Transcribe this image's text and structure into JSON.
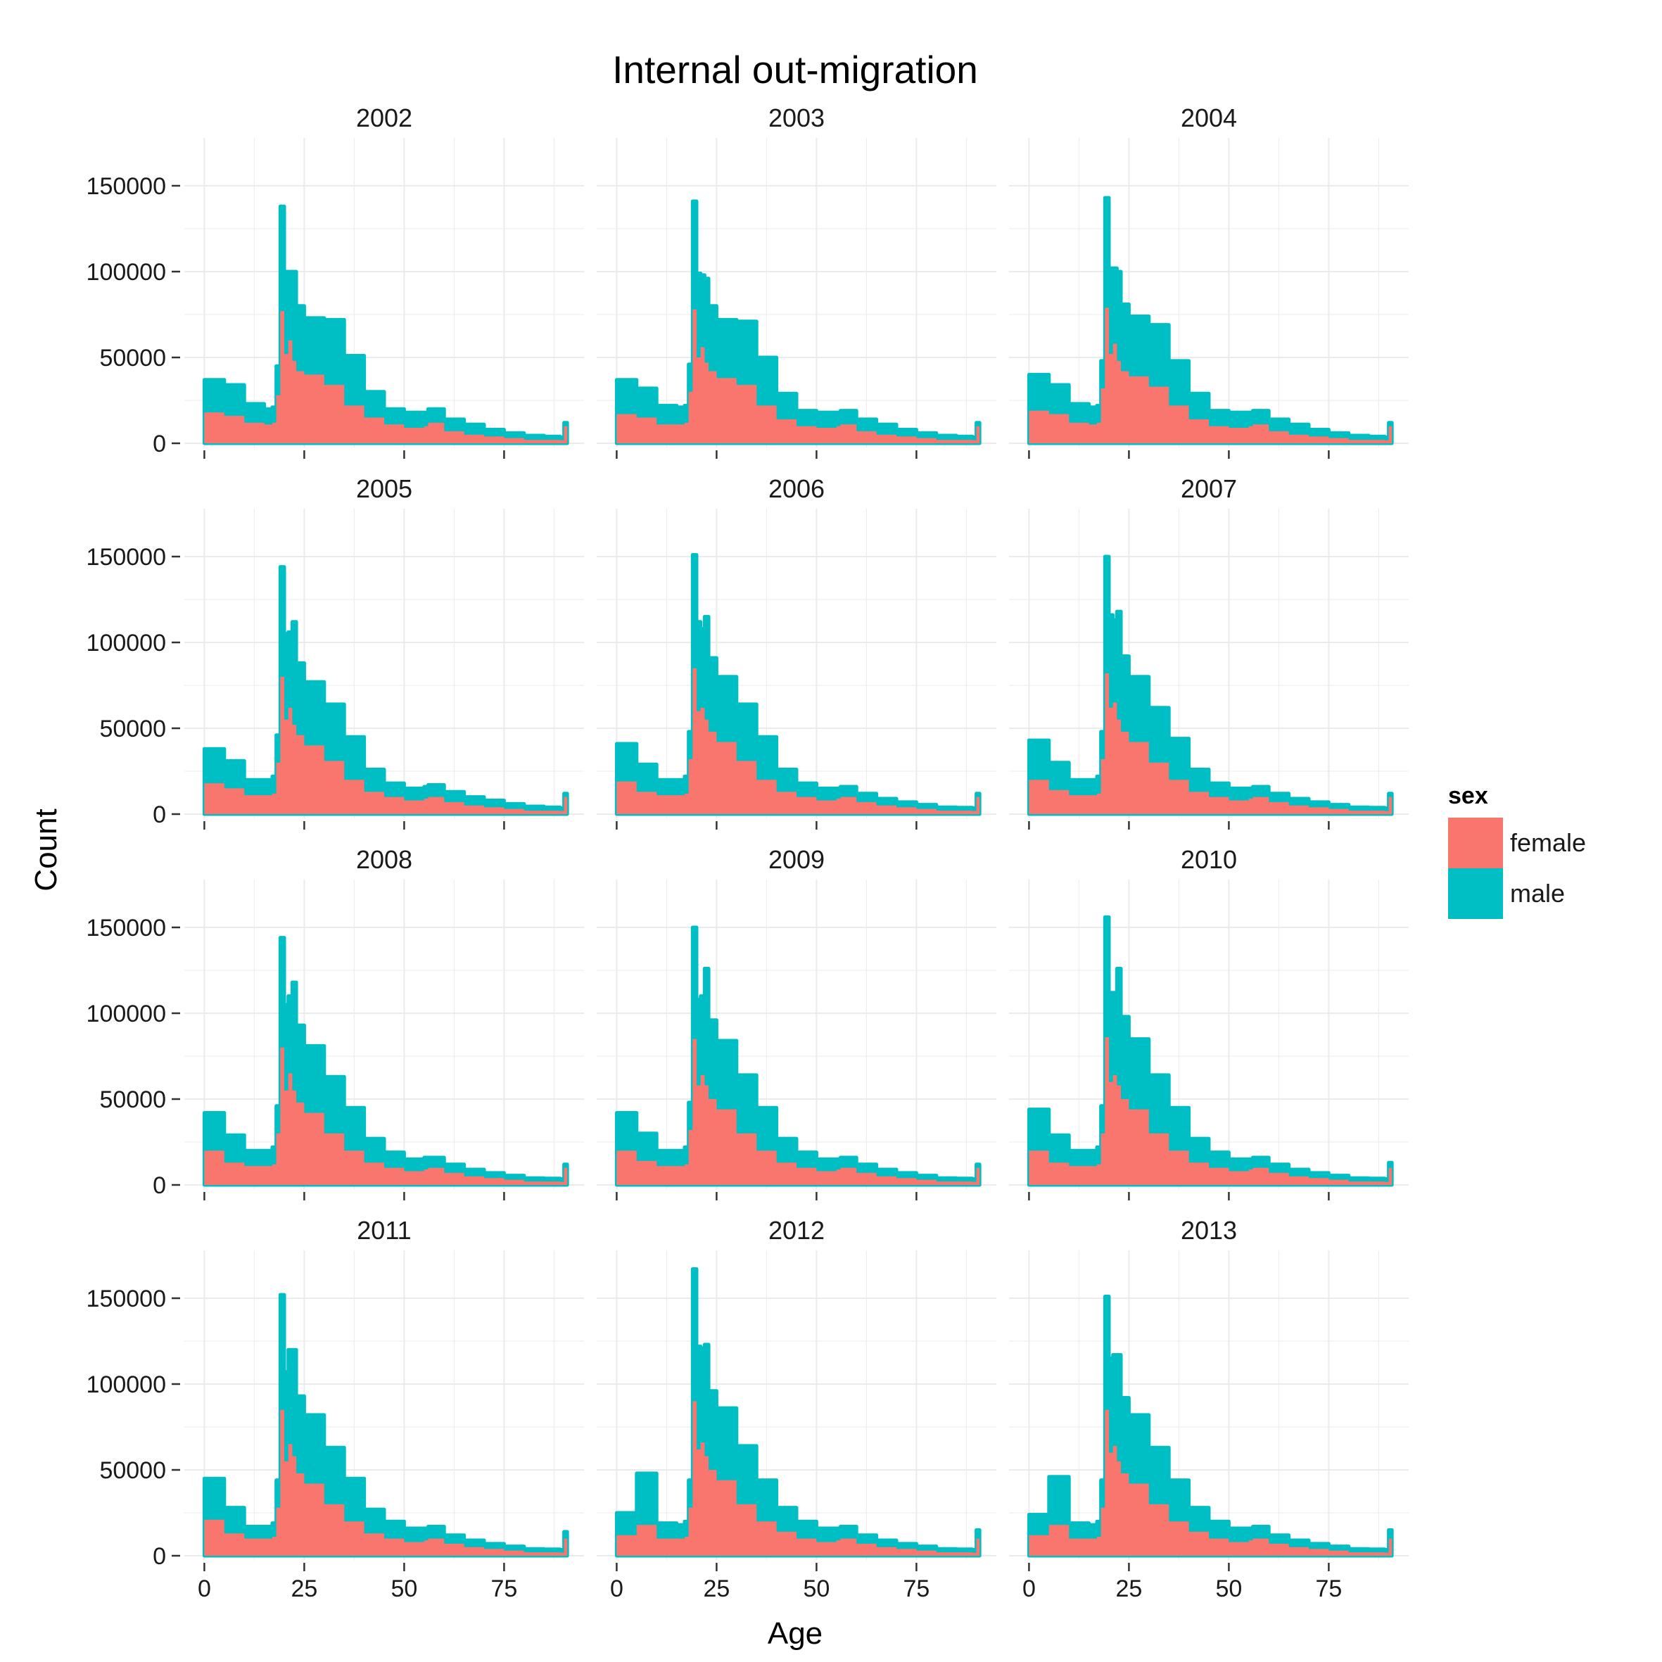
{
  "chart_data": {
    "type": "area",
    "title": "Internal out-migration",
    "xlabel": "Age",
    "ylabel": "Count",
    "xlim": [
      0,
      90
    ],
    "ylim": [
      0,
      170000
    ],
    "xticks": [
      0,
      25,
      50,
      75
    ],
    "yticks": [
      0,
      50000,
      100000,
      150000
    ],
    "x_tick_labels": [
      "0",
      "25",
      "50",
      "75"
    ],
    "y_tick_labels": [
      "0",
      "50000",
      "100000",
      "150000"
    ],
    "stacked": true,
    "grid": true,
    "legend": {
      "title": "sex",
      "position": "right",
      "entries": [
        {
          "name": "female",
          "color": "#F8766D"
        },
        {
          "name": "male",
          "color": "#00BFC4"
        }
      ]
    },
    "x_ages": [
      0,
      5,
      10,
      15,
      17,
      18,
      19,
      20,
      21,
      22,
      23,
      25,
      30,
      35,
      40,
      45,
      50,
      55,
      56,
      60,
      65,
      70,
      75,
      80,
      85,
      89,
      90
    ],
    "panels": [
      {
        "label": "2002",
        "female": [
          18000,
          16000,
          12000,
          11000,
          12000,
          28000,
          77000,
          52000,
          60000,
          48000,
          42000,
          40000,
          34000,
          22000,
          15000,
          11000,
          9000,
          10000,
          12000,
          7000,
          5000,
          4000,
          3000,
          2000,
          2000,
          1800,
          10000
        ],
        "male": [
          19000,
          18000,
          11000,
          9000,
          9000,
          17000,
          61000,
          48000,
          40000,
          52000,
          38000,
          33000,
          38000,
          29000,
          15000,
          9000,
          9000,
          8000,
          8000,
          7000,
          6000,
          4000,
          3000,
          2500,
          2000,
          1700,
          2000
        ]
      },
      {
        "label": "2003",
        "female": [
          17000,
          15000,
          11000,
          11000,
          12000,
          30000,
          78000,
          50000,
          56000,
          47000,
          42000,
          38000,
          34000,
          22000,
          14000,
          10000,
          9000,
          10000,
          11000,
          7000,
          5000,
          4000,
          3000,
          2000,
          2000,
          1800,
          10000
        ],
        "male": [
          20000,
          17000,
          11000,
          10000,
          10000,
          16000,
          63000,
          49000,
          42000,
          49000,
          38000,
          34000,
          37000,
          28000,
          15000,
          9000,
          9000,
          8000,
          8000,
          7000,
          6000,
          4000,
          3000,
          2500,
          2000,
          1700,
          2000
        ]
      },
      {
        "label": "2004",
        "female": [
          19000,
          17000,
          12000,
          11000,
          12000,
          32000,
          79000,
          52000,
          58000,
          48000,
          42000,
          39000,
          33000,
          22000,
          14000,
          10000,
          9000,
          10000,
          11000,
          7000,
          5000,
          4000,
          3000,
          2000,
          2000,
          1800,
          10000
        ],
        "male": [
          21000,
          17000,
          11000,
          10000,
          10000,
          16000,
          64000,
          50000,
          44000,
          52000,
          39000,
          35000,
          36000,
          26000,
          15000,
          9000,
          9000,
          8000,
          8000,
          7000,
          6000,
          4000,
          3000,
          2500,
          2000,
          1700,
          2000
        ]
      },
      {
        "label": "2005",
        "female": [
          18000,
          15000,
          11000,
          11000,
          12000,
          30000,
          80000,
          55000,
          62000,
          52000,
          46000,
          40000,
          31000,
          20000,
          13000,
          10000,
          8000,
          9000,
          10000,
          7000,
          5000,
          4000,
          3000,
          2000,
          2000,
          1800,
          10000
        ],
        "male": [
          20000,
          16000,
          9000,
          9000,
          10000,
          16000,
          64000,
          50000,
          44000,
          60000,
          42000,
          37000,
          33000,
          25000,
          13000,
          8000,
          7000,
          7000,
          7000,
          6000,
          5000,
          4000,
          3000,
          2500,
          2000,
          1700,
          2000
        ]
      },
      {
        "label": "2006",
        "female": [
          19000,
          13000,
          11000,
          11000,
          12000,
          32000,
          85000,
          60000,
          62000,
          55000,
          48000,
          42000,
          31000,
          20000,
          13000,
          10000,
          8000,
          9000,
          10000,
          7000,
          5000,
          4000,
          3000,
          2000,
          2000,
          1800,
          10000
        ],
        "male": [
          22000,
          16000,
          9000,
          9000,
          10000,
          16000,
          66000,
          52000,
          46000,
          60000,
          43000,
          38000,
          33000,
          25000,
          13000,
          8000,
          7000,
          6000,
          6000,
          5000,
          4000,
          3000,
          2500,
          2000,
          1800,
          1700,
          2000
        ]
      },
      {
        "label": "2007",
        "female": [
          20000,
          14000,
          11000,
          11000,
          12000,
          32000,
          82000,
          62000,
          65000,
          55000,
          48000,
          42000,
          30000,
          20000,
          13000,
          10000,
          8000,
          9000,
          10000,
          7000,
          5000,
          4000,
          3000,
          2000,
          2000,
          1800,
          10000
        ],
        "male": [
          23000,
          16000,
          9000,
          9000,
          10000,
          16000,
          68000,
          54000,
          48000,
          63000,
          44000,
          38000,
          32000,
          24000,
          13000,
          8000,
          7000,
          6000,
          6000,
          5000,
          4000,
          3000,
          2500,
          2000,
          1800,
          1700,
          2000
        ]
      },
      {
        "label": "2008",
        "female": [
          20000,
          13000,
          11000,
          11000,
          12000,
          30000,
          80000,
          55000,
          65000,
          55000,
          48000,
          42000,
          30000,
          20000,
          13000,
          10000,
          8000,
          9000,
          10000,
          7000,
          5000,
          4000,
          3000,
          2000,
          2000,
          1800,
          10000
        ],
        "male": [
          22000,
          16000,
          9000,
          9000,
          10000,
          16000,
          64000,
          50000,
          45000,
          63000,
          45000,
          39000,
          33000,
          25000,
          14000,
          9000,
          7000,
          7000,
          6000,
          5000,
          4000,
          3000,
          2500,
          2000,
          1800,
          1700,
          2000
        ]
      },
      {
        "label": "2009",
        "female": [
          20000,
          14000,
          11000,
          11000,
          12000,
          32000,
          85000,
          58000,
          64000,
          58000,
          50000,
          44000,
          30000,
          20000,
          13000,
          10000,
          8000,
          9000,
          10000,
          7000,
          5000,
          4000,
          3000,
          2000,
          2000,
          1800,
          10000
        ],
        "male": [
          22000,
          16000,
          9000,
          9000,
          10000,
          16000,
          65000,
          50000,
          46000,
          68000,
          46000,
          40000,
          34000,
          25000,
          14000,
          9000,
          7000,
          6000,
          6000,
          5000,
          4000,
          3000,
          2500,
          2000,
          1800,
          1700,
          2000
        ]
      },
      {
        "label": "2010",
        "female": [
          20000,
          13000,
          11000,
          11000,
          12000,
          30000,
          86000,
          60000,
          64000,
          58000,
          50000,
          44000,
          30000,
          20000,
          13000,
          10000,
          8000,
          9000,
          10000,
          7000,
          5000,
          4000,
          3000,
          2000,
          2000,
          1800,
          10000
        ],
        "male": [
          24000,
          16000,
          9000,
          9000,
          10000,
          16000,
          70000,
          52000,
          48000,
          68000,
          48000,
          41000,
          34000,
          25000,
          14000,
          9000,
          7000,
          6000,
          6000,
          5000,
          4000,
          3000,
          2500,
          2000,
          1800,
          1700,
          3000
        ]
      },
      {
        "label": "2011",
        "female": [
          21000,
          13000,
          10000,
          10000,
          11000,
          28000,
          85000,
          55000,
          65000,
          58000,
          48000,
          42000,
          30000,
          20000,
          13000,
          10000,
          8000,
          9000,
          10000,
          7000,
          5000,
          4000,
          3000,
          2000,
          2000,
          1800,
          10000
        ],
        "male": [
          24000,
          15000,
          7000,
          7000,
          8000,
          16000,
          67000,
          52000,
          55000,
          62000,
          45000,
          40000,
          33000,
          25000,
          14000,
          10000,
          8000,
          7000,
          7000,
          5000,
          4000,
          3000,
          2500,
          2000,
          1800,
          1700,
          4000
        ]
      },
      {
        "label": "2012",
        "female": [
          12000,
          18000,
          10000,
          10000,
          11000,
          28000,
          90000,
          62000,
          66000,
          58000,
          50000,
          44000,
          30000,
          20000,
          14000,
          10000,
          8000,
          9000,
          10000,
          7000,
          5000,
          4000,
          3000,
          2000,
          2000,
          1800,
          10000
        ],
        "male": [
          13000,
          30000,
          9000,
          8000,
          9000,
          16000,
          77000,
          60000,
          55000,
          65000,
          46000,
          42000,
          34000,
          24000,
          14000,
          10000,
          8000,
          7000,
          7000,
          5000,
          4000,
          3000,
          2500,
          2000,
          1800,
          1700,
          5000
        ]
      },
      {
        "label": "2013",
        "female": [
          12000,
          18000,
          10000,
          10000,
          11000,
          28000,
          85000,
          60000,
          64000,
          55000,
          48000,
          42000,
          30000,
          20000,
          14000,
          10000,
          8000,
          9000,
          10000,
          7000,
          5000,
          4000,
          3000,
          2000,
          2000,
          1800,
          10000
        ],
        "male": [
          12000,
          28000,
          9000,
          8000,
          9000,
          16000,
          66000,
          55000,
          53000,
          62000,
          44000,
          40000,
          33000,
          24000,
          14000,
          10000,
          8000,
          7000,
          7000,
          5000,
          4000,
          3000,
          2500,
          2000,
          1800,
          1700,
          5000
        ]
      }
    ]
  }
}
